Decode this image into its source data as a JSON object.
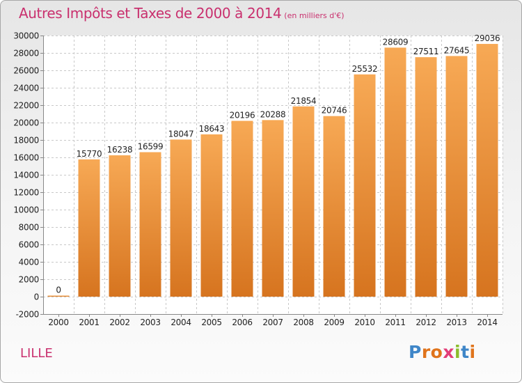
{
  "header": {
    "title": "Autres Impôts et Taxes de 2000 à 2014",
    "unit": "(en milliers d'€)"
  },
  "footer": {
    "city": "LILLE",
    "logo_letters": [
      "P",
      "r",
      "o",
      "x",
      "i",
      "t",
      "i"
    ]
  },
  "colors": {
    "title": "#c9306e",
    "bar_top": "#f7a955",
    "bar_bottom": "#d6741f",
    "grid": "#c8c8c8",
    "axis": "#888888"
  },
  "chart_data": {
    "type": "bar",
    "title": "Autres Impôts et Taxes de 2000 à 2014",
    "subtitle": "(en milliers d'€)",
    "xlabel": "",
    "ylabel": "",
    "categories": [
      "2000",
      "2001",
      "2002",
      "2003",
      "2004",
      "2005",
      "2006",
      "2007",
      "2008",
      "2009",
      "2010",
      "2011",
      "2012",
      "2013",
      "2014"
    ],
    "values": [
      0,
      15770,
      16238,
      16599,
      18047,
      18643,
      20196,
      20288,
      21854,
      20746,
      25532,
      28609,
      27511,
      27645,
      29036
    ],
    "ylim": [
      -2000,
      30000
    ],
    "yticks": [
      -2000,
      0,
      2000,
      4000,
      6000,
      8000,
      10000,
      12000,
      14000,
      16000,
      18000,
      20000,
      22000,
      24000,
      26000,
      28000,
      30000
    ],
    "grid": true,
    "data_labels": true,
    "legend": "none"
  }
}
